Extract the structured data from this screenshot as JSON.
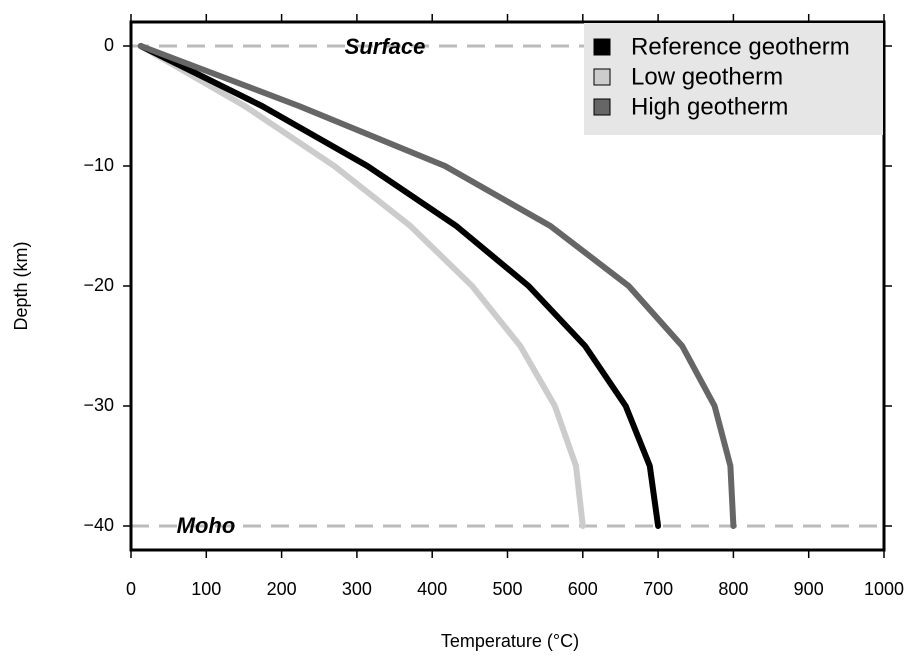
{
  "chart_data": {
    "type": "line",
    "xlabel": "Temperature (°C)",
    "ylabel": "Depth (km)",
    "y": [
      0,
      -5,
      -10,
      -15,
      -20,
      -25,
      -30,
      -35,
      -40
    ],
    "series": [
      {
        "name": "Reference geotherm",
        "color": "#000000",
        "values": [
          13,
          174,
          314,
          432,
          528,
          603,
          657,
          689,
          700
        ]
      },
      {
        "name": "Low geotherm",
        "color": "#cccccc",
        "values": [
          13,
          151,
          270,
          371,
          453,
          517,
          563,
          591,
          600
        ]
      },
      {
        "name": "High geotherm",
        "color": "#666666",
        "values": [
          13,
          223,
          417,
          557,
          661,
          732,
          775,
          796,
          800
        ]
      }
    ],
    "xlim": [
      0,
      1000
    ],
    "ylim": [
      -42,
      2
    ],
    "xticks": [
      0,
      100,
      200,
      300,
      400,
      500,
      600,
      700,
      800,
      900,
      1000
    ],
    "yticks": [
      0,
      {
        "value": -10,
        "label": "−10"
      },
      {
        "value": -20,
        "label": "−20"
      },
      {
        "value": -30,
        "label": "−30"
      },
      {
        "value": -40,
        "label": "−40"
      }
    ],
    "hlines": [
      0,
      -40
    ],
    "annotations": [
      "Surface",
      "Moho"
    ],
    "legend": "upper right",
    "grid": false
  }
}
